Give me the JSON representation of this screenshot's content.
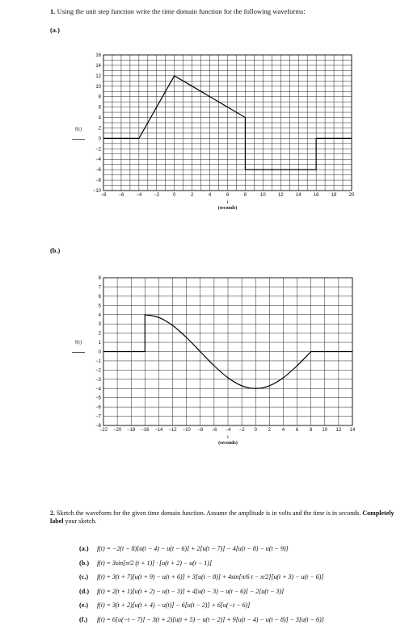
{
  "question1": {
    "number": "1.",
    "text": "Using the unit step function write the time domain function for the following waveforms:"
  },
  "part_a_label": "(a.)",
  "part_b_label": "(b.)",
  "question2": {
    "number": "2.",
    "text_before": "Sketch the waveform for the given time domain function. Assume the amplitude is in volts and the time is in seconds.",
    "text_bold": "Completely label",
    "text_after": "your sketch."
  },
  "equations": [
    {
      "label": "(a.)",
      "text": "f(t) = −2(t − 8)[u(t − 4) − u(t − 6)] + 2[u(t − 7)] − 4[u(t − 8) − u(t − 9)]"
    },
    {
      "label": "(b.)",
      "text": "f(t) = 3sin[π/2 (t + 1)] · [u(t + 2) − u(t − 1)]"
    },
    {
      "label": "(c.)",
      "text": "f(t) = 3(t + 7)[u(t + 9) − u(t + 6)] + 3[u(t − 8)] + 4sin[π/6 t − π/2][u(t + 3) − u(t − 6)]"
    },
    {
      "label": "(d.)",
      "text": "f(t) = 2(t + 1)[u(t + 2) − u(t − 3)] + 4[u(t − 3) − u(t − 6)] − 2[u(t − 3)]"
    },
    {
      "label": "(e.)",
      "text": "f(t) = 3(t + 2)[u(t + 4) − u(t)] − 6[u(t − 2)] + 6[u(−t − 6)]"
    },
    {
      "label": "(f.)",
      "text": "f(t) = 6[u(−t − 7)] − 3(t + 2)[u(t + 5) − u(t − 2)] + 9[u(t − 4) − u(t − 8)] − 3[u(t − 6)]"
    }
  ],
  "chart_data": [
    {
      "type": "line",
      "ylabel": "f(t)",
      "xlabel": "t",
      "xunit": "(seconds)",
      "xlim": [
        -8,
        20
      ],
      "ylim": [
        -10,
        16
      ],
      "x_ticks": [
        -8,
        -6,
        -4,
        -2,
        0,
        2,
        4,
        6,
        8,
        10,
        12,
        14,
        16,
        18,
        20
      ],
      "y_ticks": [
        16,
        14,
        12,
        10,
        8,
        6,
        4,
        2,
        0,
        -2,
        -4,
        -6,
        -8,
        -10
      ],
      "grid": true,
      "series": [
        {
          "x": [
            -8,
            -4,
            0,
            8,
            8,
            16,
            16,
            20
          ],
          "y": [
            0,
            0,
            12,
            4,
            -6,
            -6,
            0,
            0
          ]
        }
      ]
    },
    {
      "type": "line",
      "ylabel": "f(t)",
      "xlabel": "t",
      "xunit": "(seconds)",
      "xlim": [
        -22,
        14
      ],
      "ylim": [
        -8,
        8
      ],
      "x_ticks": [
        -22,
        -20,
        -18,
        -16,
        -14,
        -12,
        -10,
        -8,
        -6,
        -4,
        -2,
        0,
        2,
        4,
        6,
        8,
        10,
        12,
        14
      ],
      "y_ticks": [
        8,
        7,
        6,
        5,
        4,
        3,
        2,
        1,
        0,
        -1,
        -2,
        -3,
        -4,
        -5,
        -6,
        -7,
        -8
      ],
      "grid": true,
      "series": [
        {
          "x": [
            -22,
            -16,
            -16,
            -14,
            -12,
            -10,
            -8,
            -6,
            -4,
            -2,
            0,
            2,
            4,
            6,
            8,
            8,
            14
          ],
          "y": [
            0,
            0,
            4,
            3.7,
            2.83,
            1.53,
            0,
            -1.53,
            -2.83,
            -3.7,
            -4,
            -3.7,
            -2.83,
            -1.53,
            0,
            0,
            0
          ]
        }
      ]
    }
  ]
}
